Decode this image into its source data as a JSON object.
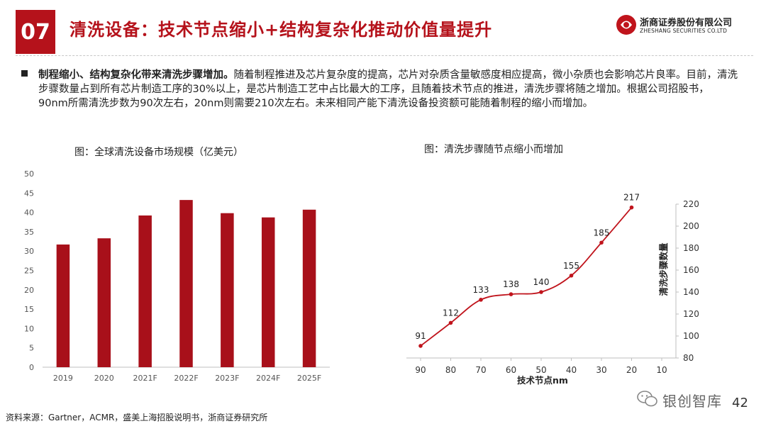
{
  "header": {
    "section_number": "07",
    "title": "清洗设备：技术节点缩小+结构复杂化推动价值量提升",
    "logo_cn": "浙商证券股份有限公司",
    "logo_en": "ZHESHANG SECURITIES CO.LTD"
  },
  "bullet": {
    "bold": "制程缩小、结构复杂化带来清洗步骤增加。",
    "text": "随着制程推进及芯片复杂度的提高，芯片对杂质含量敏感度相应提高，微小杂质也会影响芯片良率。目前，清洗步骤数量占到所有芯片制造工序的30%以上，是芯片制造工艺中占比最大的工序，且随着技术节点的推进，清洗步骤将随之增加。根据公司招股书，90nm所需清洗步数为90次左右，20nm则需要210次左右。未来相同产能下清洗设备投资额可能随着制程的缩小而增加。"
  },
  "chart_data": [
    {
      "type": "bar",
      "title": "图：全球清洗设备市场规模（亿美元）",
      "categories": [
        "2019",
        "2020",
        "2021F",
        "2022F",
        "2023F",
        "2024F",
        "2025F"
      ],
      "values": [
        31.7,
        33.3,
        39.2,
        43.2,
        39.8,
        38.7,
        40.7
      ],
      "ylim": [
        0,
        50
      ],
      "yticks": [
        0,
        5,
        10,
        15,
        20,
        25,
        30,
        35,
        40,
        45,
        50
      ],
      "bar_color": "#a8101a",
      "grid": false
    },
    {
      "type": "line",
      "title": "图：清洗步骤随节点缩小而增加",
      "xlabel": "技术节点nm",
      "ylabel": "清洗步骤数量",
      "x_ticks": [
        "90",
        "80",
        "70",
        "60",
        "50",
        "40",
        "30",
        "20",
        "10"
      ],
      "x": [
        90,
        80,
        70,
        60,
        50,
        40,
        30,
        20
      ],
      "values": [
        91,
        112,
        133,
        138,
        140,
        155,
        185,
        217
      ],
      "ylim": [
        80,
        220
      ],
      "yticks": [
        80,
        100,
        120,
        140,
        160,
        180,
        200,
        220
      ],
      "y_axis_side": "right",
      "line_color": "#c0141c",
      "grid": false
    }
  ],
  "footer": {
    "source": "资料来源：Gartner，ACMR，盛美上海招股说明书，浙商证券研究所",
    "page": "42",
    "watermark": "银创智库"
  }
}
